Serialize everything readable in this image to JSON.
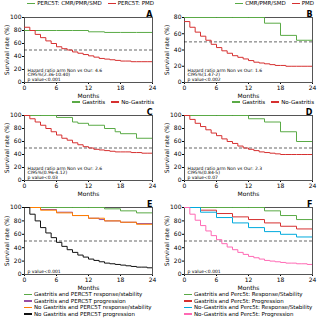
{
  "chart_data": [
    {
      "type": "step",
      "title": "A",
      "y_label": "Survival rate (%)",
      "x_label": "Months",
      "xlim": [
        0,
        24
      ],
      "ylim": [
        0,
        100
      ],
      "yticks": [
        0,
        20,
        40,
        60,
        80,
        100
      ],
      "xticks": [
        0,
        6,
        12,
        18,
        24
      ],
      "hline": 50,
      "annotation": "Hazard ratio arm Non vs Our: 4.6\nCI95%(2.36-10.40)\np value<0.001",
      "legend": "upper right",
      "grid": false,
      "series": [
        {
          "name": "PERC5T: CMR/PMR/SMD",
          "color": "#5aaa46",
          "x": [
            0,
            6,
            9,
            12,
            15,
            18,
            21,
            24
          ],
          "values": [
            80,
            80,
            80,
            78,
            77,
            77,
            77,
            77
          ]
        },
        {
          "name": "PERC5T: PMD",
          "color": "#d63030",
          "x": [
            0,
            1,
            2,
            3,
            4,
            5,
            6,
            7,
            8,
            9,
            10,
            11,
            12,
            13,
            14,
            15,
            16,
            17,
            18,
            19,
            20,
            21,
            22,
            23,
            24
          ],
          "values": [
            85,
            80,
            74,
            69,
            64,
            60,
            55,
            52,
            50,
            47,
            45,
            43,
            41,
            39,
            37,
            36,
            35,
            34,
            33,
            33,
            32,
            32,
            32,
            32,
            32
          ]
        }
      ]
    },
    {
      "type": "step",
      "title": "B",
      "y_label": "Survival rate (%)",
      "x_label": "Months",
      "xlim": [
        0,
        24
      ],
      "ylim": [
        0,
        80
      ],
      "yticks": [
        0,
        20,
        40,
        60,
        80
      ],
      "xticks": [
        0,
        6,
        12,
        18,
        24
      ],
      "hline": 50,
      "annotation": "Hazard ratio arm Non vs Our: 1.6\nCI95%(1.47-2)\np value<0.002",
      "legend": "upper right",
      "grid": false,
      "series": [
        {
          "name": "CMR/PMR/SMD",
          "color": "#5aaa46",
          "x": [
            0,
            6,
            9,
            12,
            15,
            18,
            21,
            23,
            24
          ],
          "values": [
            80,
            80,
            80,
            80,
            73,
            58,
            52,
            52,
            52
          ]
        },
        {
          "name": "PMD",
          "color": "#d63030",
          "x": [
            0,
            1,
            2,
            3,
            4,
            5,
            6,
            7,
            8,
            9,
            10,
            11,
            12,
            13,
            14,
            15,
            16,
            17,
            18,
            19,
            20,
            21,
            22,
            23,
            24
          ],
          "values": [
            75,
            68,
            62,
            57,
            52,
            47,
            43,
            39,
            36,
            33,
            31,
            29,
            27,
            25,
            24,
            23,
            22,
            21,
            21,
            20,
            20,
            20,
            20,
            20,
            20
          ]
        }
      ]
    },
    {
      "type": "step",
      "title": "C",
      "y_label": "Survival rate (%)",
      "x_label": "Months",
      "xlim": [
        0,
        24
      ],
      "ylim": [
        0,
        100
      ],
      "yticks": [
        0,
        20,
        40,
        60,
        80,
        100
      ],
      "xticks": [
        0,
        6,
        12,
        18,
        24
      ],
      "hline": 50,
      "annotation": "Hazard ratio arm Non vs Our: 2.6\nCI95%(0.96-4.12)\np value<0.03",
      "legend": "upper right",
      "grid": false,
      "series": [
        {
          "name": "Gastritis",
          "color": "#5aaa46",
          "x": [
            0,
            3,
            6,
            9,
            10,
            12,
            15,
            17,
            18,
            21,
            24
          ],
          "values": [
            100,
            100,
            97,
            90,
            88,
            85,
            80,
            75,
            72,
            65,
            60
          ]
        },
        {
          "name": "No-Gastritis",
          "color": "#d63030",
          "x": [
            0,
            1,
            2,
            3,
            4,
            5,
            6,
            7,
            8,
            9,
            10,
            11,
            12,
            13,
            14,
            15,
            16,
            17,
            18,
            19,
            20,
            21,
            22,
            23,
            24
          ],
          "values": [
            100,
            95,
            90,
            85,
            80,
            75,
            70,
            65,
            62,
            58,
            55,
            52,
            50,
            48,
            47,
            46,
            45,
            44,
            44,
            44,
            43,
            43,
            42,
            42,
            42
          ]
        }
      ]
    },
    {
      "type": "step",
      "title": "D",
      "y_label": "Survival rate (%)",
      "x_label": "Months",
      "xlim": [
        0,
        24
      ],
      "ylim": [
        0,
        100
      ],
      "yticks": [
        0,
        20,
        40,
        60,
        80,
        100
      ],
      "xticks": [
        0,
        6,
        12,
        18,
        24
      ],
      "hline": 50,
      "annotation": "Hazard ratio arm Non vs Our: 2.3\nCI95%(0.84-5)\np value<0.07",
      "legend": "upper right",
      "grid": false,
      "series": [
        {
          "name": "Gastritis",
          "color": "#5aaa46",
          "x": [
            0,
            6,
            9,
            12,
            15,
            18,
            21,
            24
          ],
          "values": [
            100,
            100,
            100,
            95,
            90,
            75,
            60,
            52
          ]
        },
        {
          "name": "No-Gastritis",
          "color": "#d63030",
          "x": [
            0,
            1,
            2,
            3,
            4,
            5,
            6,
            7,
            8,
            9,
            10,
            11,
            12,
            13,
            14,
            15,
            16,
            17,
            18,
            19,
            20,
            21,
            22,
            23,
            24
          ],
          "values": [
            100,
            94,
            88,
            83,
            78,
            73,
            69,
            64,
            60,
            57,
            53,
            50,
            48,
            46,
            44,
            43,
            42,
            41,
            40,
            40,
            40,
            40,
            40,
            40,
            40
          ]
        }
      ]
    },
    {
      "type": "step",
      "title": "E",
      "y_label": "Survival rate (%)",
      "x_label": "Months",
      "xlim": [
        0,
        24
      ],
      "ylim": [
        0,
        100
      ],
      "yticks": [
        0,
        20,
        40,
        60,
        80,
        100
      ],
      "xticks": [
        0,
        6,
        12,
        18,
        24
      ],
      "hline": 50,
      "annotation": "p value<0.001",
      "legend": "lower left",
      "grid": false,
      "series": [
        {
          "name": "Gastritis and PERC5T response/stability",
          "color": "#5aaa46",
          "x": [
            0,
            6,
            9,
            12,
            15,
            18,
            21,
            24
          ],
          "values": [
            100,
            100,
            100,
            100,
            98,
            95,
            92,
            90
          ]
        },
        {
          "name": "Gastritis and PERC5T progression",
          "color": "#984ea3",
          "x": [
            0,
            3,
            6,
            9,
            12,
            14,
            15,
            18,
            21,
            24
          ],
          "values": [
            100,
            97,
            93,
            88,
            84,
            82,
            80,
            78,
            76,
            75
          ]
        },
        {
          "name": "No Gastritis and PERC5T response/stability",
          "color": "#ff7f00",
          "x": [
            0,
            3,
            6,
            9,
            12,
            15,
            18,
            21,
            24
          ],
          "values": [
            100,
            96,
            92,
            88,
            84,
            80,
            78,
            75,
            73
          ]
        },
        {
          "name": "No Gastritis and PERC5T progression",
          "color": "#111111",
          "x": [
            0,
            1,
            2,
            3,
            4,
            5,
            6,
            7,
            8,
            9,
            10,
            11,
            12,
            13,
            14,
            15,
            16,
            17,
            18,
            19,
            20,
            21,
            22,
            23,
            24
          ],
          "values": [
            100,
            90,
            80,
            70,
            62,
            55,
            48,
            42,
            37,
            33,
            29,
            26,
            23,
            21,
            19,
            17,
            16,
            15,
            14,
            13,
            12,
            11,
            11,
            10,
            10
          ]
        }
      ]
    },
    {
      "type": "step",
      "title": "F",
      "y_label": "Survival rate (%)",
      "x_label": "Months",
      "xlim": [
        0,
        24
      ],
      "ylim": [
        0,
        100
      ],
      "yticks": [
        0,
        20,
        40,
        60,
        80,
        100
      ],
      "xticks": [
        0,
        6,
        12,
        18,
        24
      ],
      "hline": 50,
      "annotation": "p value<0.001",
      "legend": "lower left",
      "grid": false,
      "series": [
        {
          "name": "Gastritis and Perc5t: Response/Stability",
          "color": "#5aaa46",
          "x": [
            0,
            6,
            9,
            12,
            15,
            18,
            21,
            24
          ],
          "values": [
            100,
            100,
            100,
            100,
            95,
            88,
            82,
            78
          ]
        },
        {
          "name": "Gastritis and Perc5t: Progression",
          "color": "#d63030",
          "x": [
            0,
            3,
            6,
            9,
            12,
            15,
            18,
            21,
            24
          ],
          "values": [
            100,
            96,
            91,
            86,
            82,
            77,
            72,
            68,
            65
          ]
        },
        {
          "name": "No-Gastritis and Perc5t: Response/Stability",
          "color": "#00aadd",
          "x": [
            0,
            3,
            6,
            9,
            12,
            15,
            18,
            21,
            24
          ],
          "values": [
            100,
            93,
            85,
            77,
            70,
            64,
            60,
            56,
            53
          ]
        },
        {
          "name": "No-Gastritis and Perc5t: Progression",
          "color": "#ff69b4",
          "x": [
            0,
            1,
            2,
            3,
            4,
            5,
            6,
            7,
            8,
            9,
            10,
            11,
            12,
            13,
            14,
            15,
            16,
            17,
            18,
            19,
            20,
            21,
            22,
            23,
            24
          ],
          "values": [
            100,
            90,
            81,
            73,
            65,
            58,
            52,
            46,
            41,
            37,
            33,
            30,
            27,
            25,
            23,
            21,
            20,
            19,
            18,
            17,
            17,
            16,
            16,
            15,
            15
          ]
        }
      ]
    }
  ]
}
